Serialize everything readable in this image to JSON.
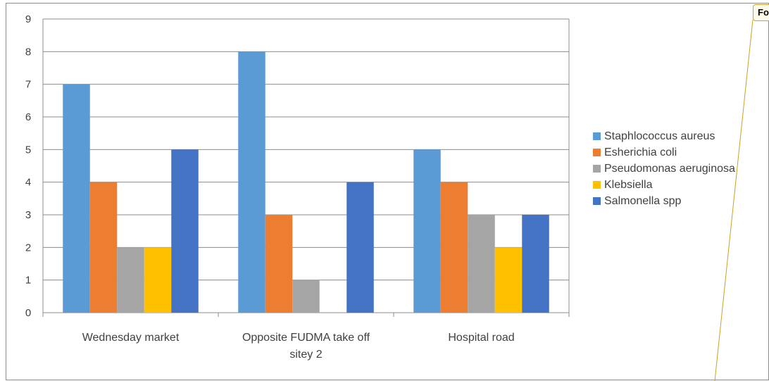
{
  "chart_data": {
    "type": "bar",
    "categories": [
      "Wednesday market",
      "Opposite FUDMA take off sitey 2",
      "Hospital road"
    ],
    "category_lines": [
      [
        "Wednesday market"
      ],
      [
        "Opposite FUDMA take off",
        "sitey 2"
      ],
      [
        "Hospital road"
      ]
    ],
    "series": [
      {
        "name": "Staphlococcus aureus",
        "color": "#5B9BD5",
        "values": [
          7,
          8,
          5
        ]
      },
      {
        "name": "Esherichia coli",
        "color": "#ED7D31",
        "values": [
          4,
          3,
          4
        ]
      },
      {
        "name": "Pseudomonas aeruginosa",
        "color": "#A5A5A5",
        "values": [
          2,
          1,
          3
        ]
      },
      {
        "name": "Klebsiella",
        "color": "#FFC000",
        "values": [
          2,
          0,
          2
        ]
      },
      {
        "name": "Salmonella spp",
        "color": "#4472C4",
        "values": [
          5,
          4,
          3
        ]
      }
    ],
    "ylim": [
      0,
      9
    ],
    "yticks": [
      "0",
      "1",
      "2",
      "3",
      "4",
      "5",
      "6",
      "7",
      "8",
      "9"
    ],
    "grid": true,
    "legend_position": "right",
    "title": "",
    "xlabel": "",
    "ylabel": ""
  },
  "comment_tag": "Fo"
}
